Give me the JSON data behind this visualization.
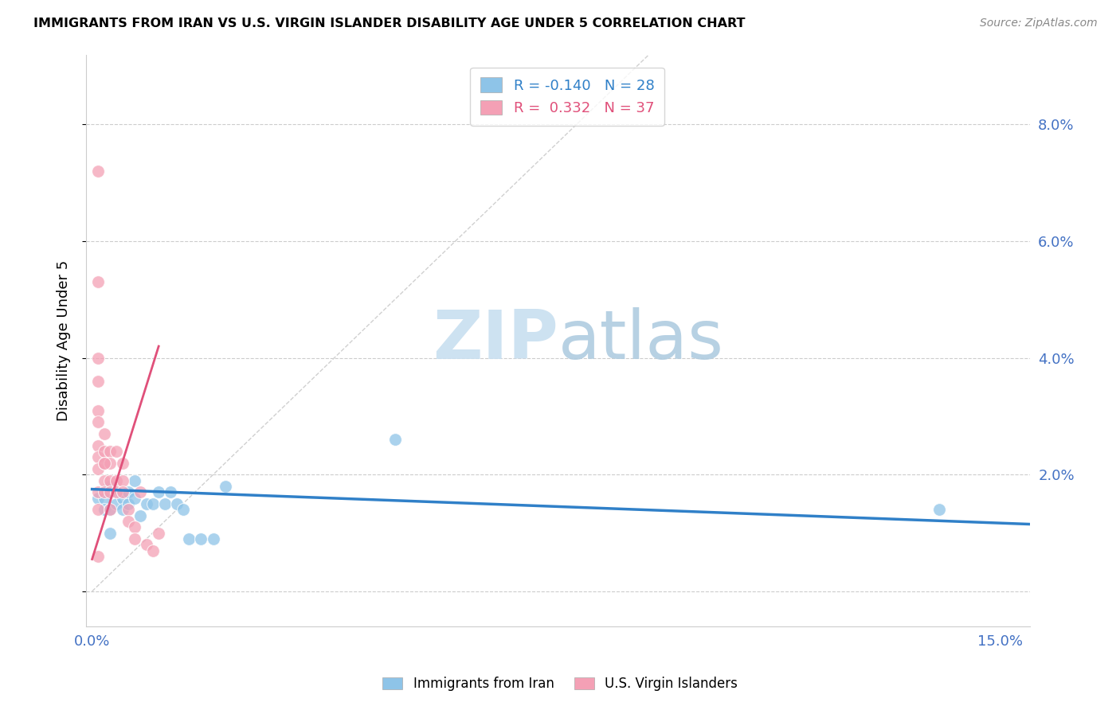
{
  "title": "IMMIGRANTS FROM IRAN VS U.S. VIRGIN ISLANDER DISABILITY AGE UNDER 5 CORRELATION CHART",
  "source": "Source: ZipAtlas.com",
  "ylabel": "Disability Age Under 5",
  "yticks": [
    0.0,
    0.02,
    0.04,
    0.06,
    0.08
  ],
  "ytick_labels": [
    "",
    "2.0%",
    "4.0%",
    "6.0%",
    "8.0%"
  ],
  "xlim": [
    -0.001,
    0.155
  ],
  "ylim": [
    -0.006,
    0.092
  ],
  "legend_blue_r": "-0.140",
  "legend_blue_n": "28",
  "legend_pink_r": "0.332",
  "legend_pink_n": "37",
  "legend_label_blue": "Immigrants from Iran",
  "legend_label_pink": "U.S. Virgin Islanders",
  "blue_color": "#8ec4e8",
  "pink_color": "#f4a0b5",
  "blue_line_color": "#3080c8",
  "pink_line_color": "#e0507a",
  "axis_color": "#4472C4",
  "grid_color": "#cccccc",
  "blue_scatter_x": [
    0.001,
    0.002,
    0.002,
    0.003,
    0.003,
    0.004,
    0.004,
    0.005,
    0.005,
    0.006,
    0.006,
    0.007,
    0.007,
    0.008,
    0.009,
    0.01,
    0.011,
    0.012,
    0.013,
    0.014,
    0.015,
    0.016,
    0.018,
    0.02,
    0.022,
    0.05,
    0.14,
    0.003
  ],
  "blue_scatter_y": [
    0.016,
    0.016,
    0.014,
    0.014,
    0.018,
    0.017,
    0.015,
    0.016,
    0.014,
    0.015,
    0.017,
    0.016,
    0.019,
    0.013,
    0.015,
    0.015,
    0.017,
    0.015,
    0.017,
    0.015,
    0.014,
    0.009,
    0.009,
    0.009,
    0.018,
    0.026,
    0.014,
    0.01
  ],
  "pink_scatter_x": [
    0.001,
    0.001,
    0.001,
    0.001,
    0.001,
    0.001,
    0.001,
    0.001,
    0.001,
    0.001,
    0.001,
    0.002,
    0.002,
    0.002,
    0.002,
    0.002,
    0.003,
    0.003,
    0.003,
    0.003,
    0.003,
    0.004,
    0.004,
    0.004,
    0.005,
    0.005,
    0.005,
    0.006,
    0.006,
    0.007,
    0.007,
    0.008,
    0.009,
    0.01,
    0.011,
    0.001,
    0.002
  ],
  "pink_scatter_y": [
    0.072,
    0.053,
    0.04,
    0.036,
    0.031,
    0.029,
    0.025,
    0.023,
    0.021,
    0.017,
    0.014,
    0.027,
    0.024,
    0.022,
    0.019,
    0.017,
    0.024,
    0.022,
    0.019,
    0.017,
    0.014,
    0.019,
    0.017,
    0.024,
    0.022,
    0.019,
    0.017,
    0.014,
    0.012,
    0.011,
    0.009,
    0.017,
    0.008,
    0.007,
    0.01,
    0.006,
    0.022
  ],
  "blue_trend_x": [
    0.0,
    0.155
  ],
  "blue_trend_y": [
    0.0175,
    0.0115
  ],
  "pink_trend_x": [
    0.0,
    0.011
  ],
  "pink_trend_y": [
    0.0055,
    0.042
  ],
  "diag_line_x": [
    0.0,
    0.092
  ],
  "diag_line_y": [
    0.0,
    0.092
  ]
}
